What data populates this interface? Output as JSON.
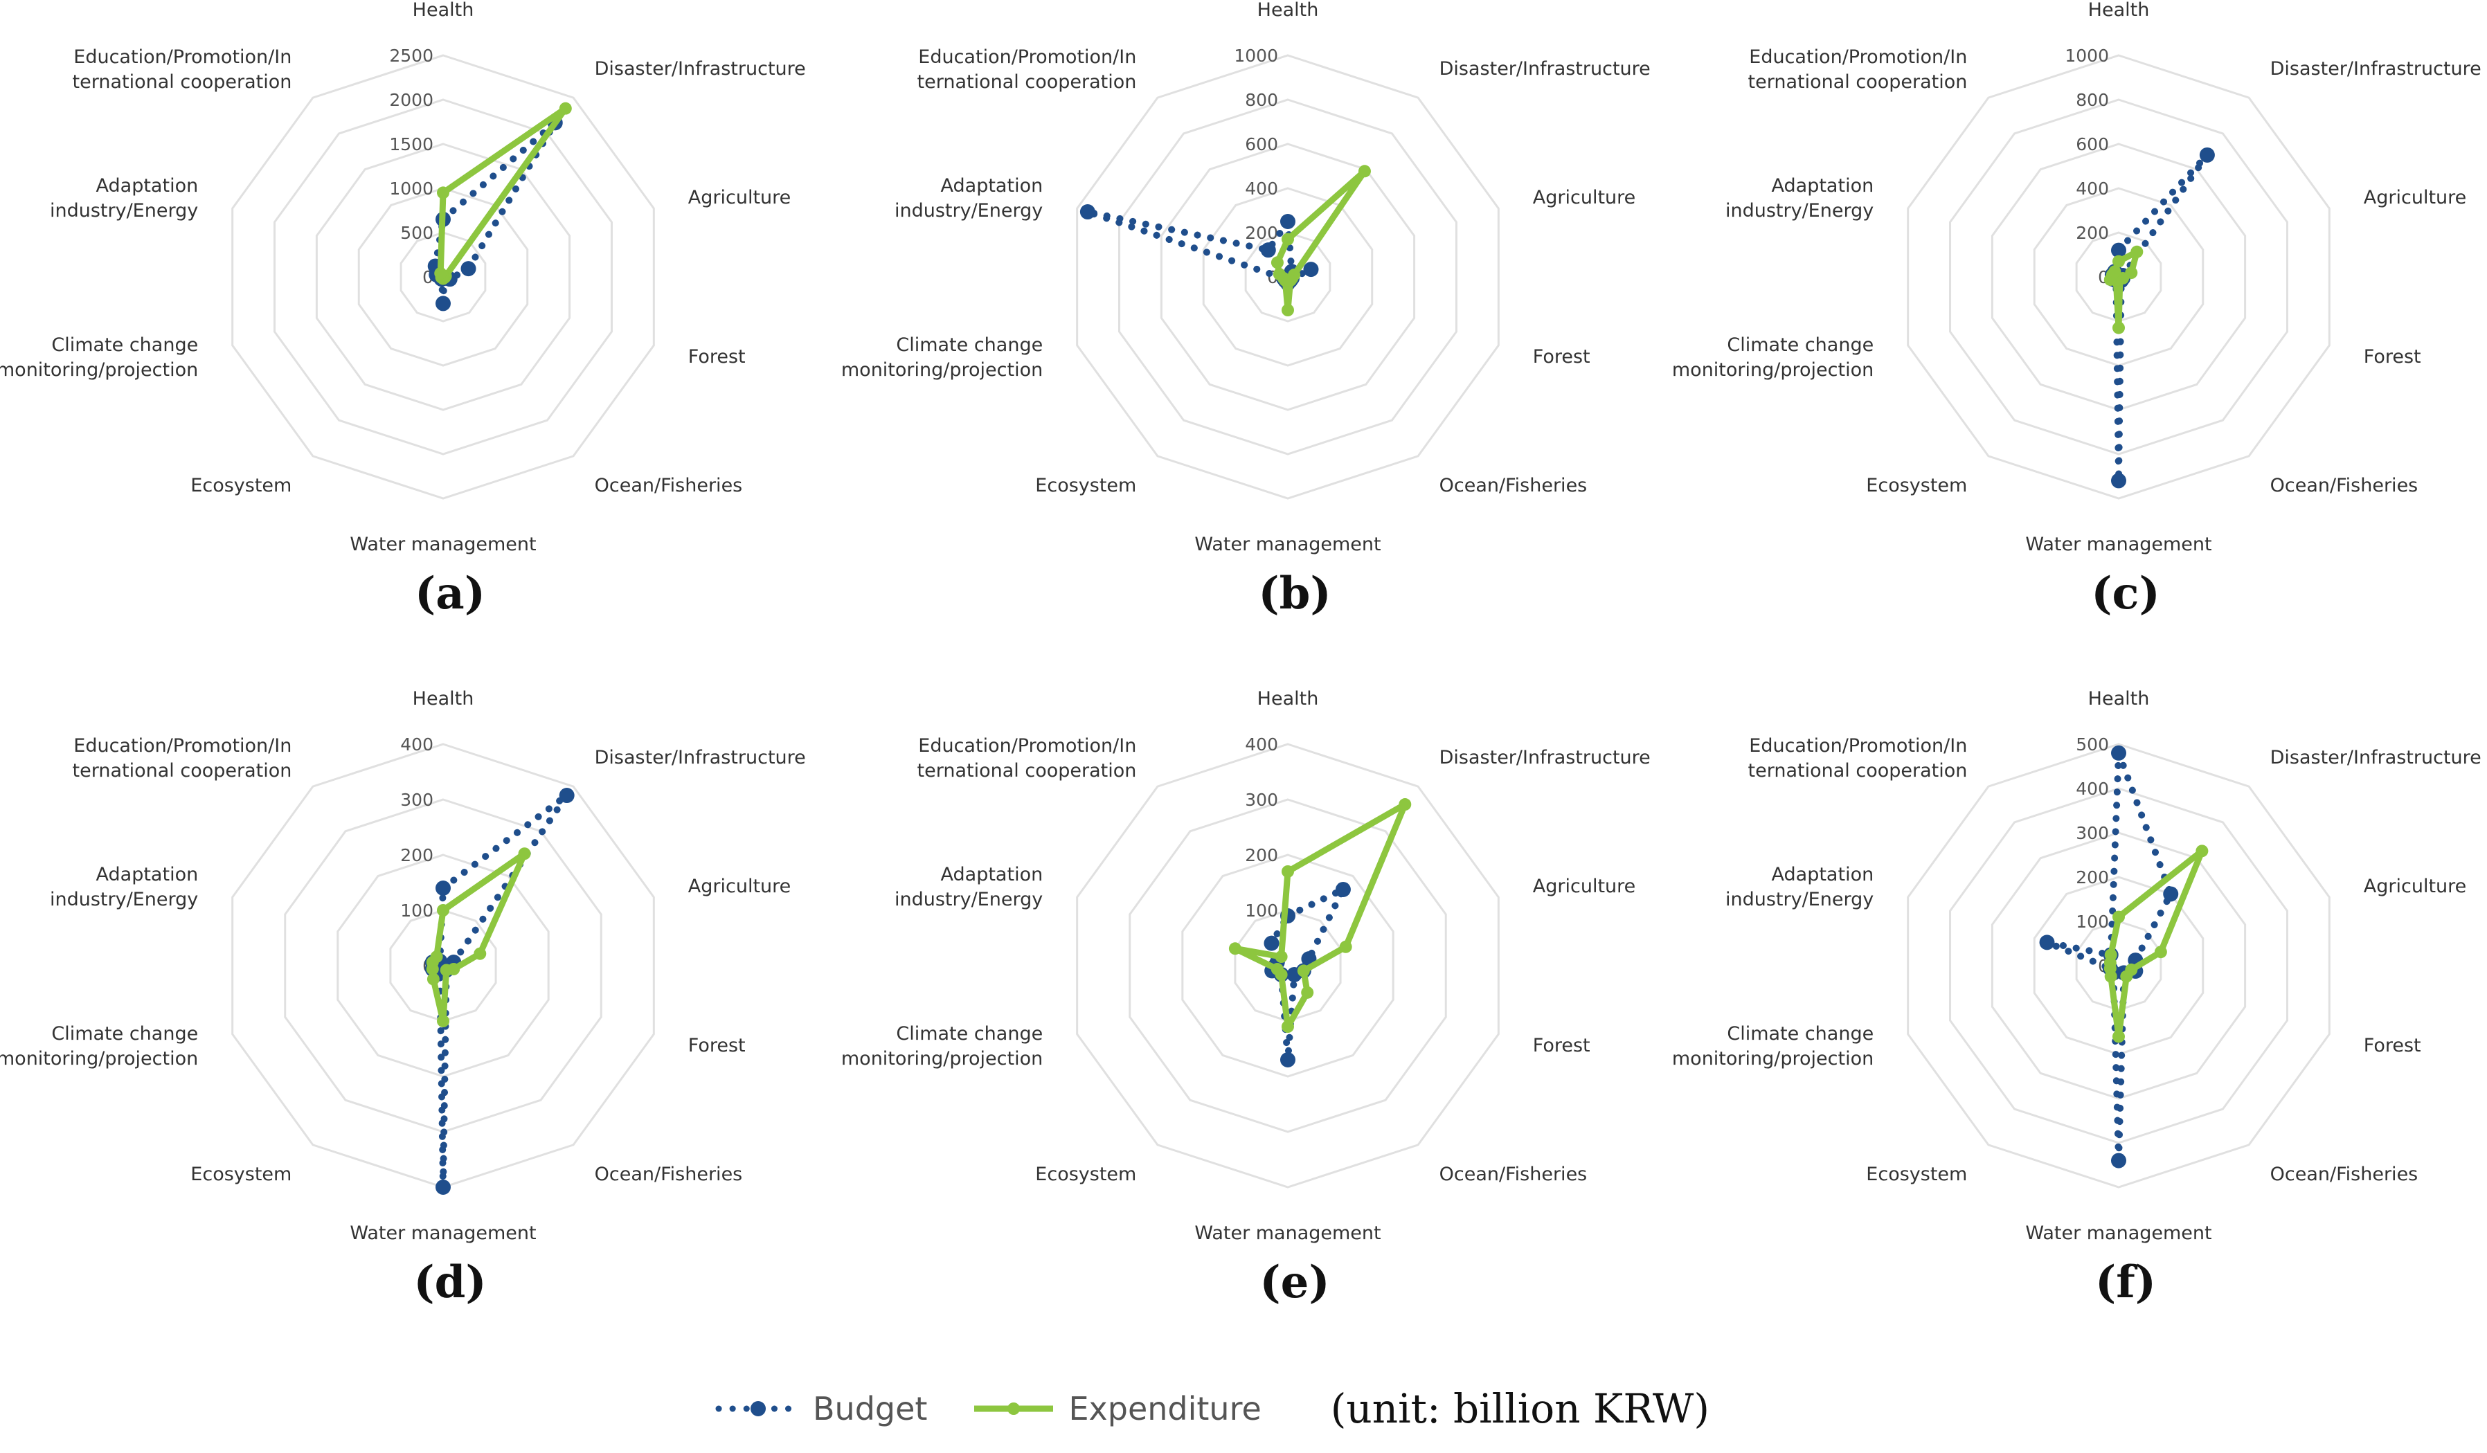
{
  "chart_data": {
    "type": "radar",
    "unit_note": "(unit: billion KRW)",
    "axes_labels": [
      [
        "Health"
      ],
      [
        "Disaster/Infrastructure"
      ],
      [
        "Agriculture"
      ],
      [
        "Forest"
      ],
      [
        "Ocean/Fisheries"
      ],
      [
        "Water management"
      ],
      [
        "Ecosystem"
      ],
      [
        "Climate change",
        "monitoring/projection"
      ],
      [
        "Adaptation",
        "industry/Energy"
      ],
      [
        "Education/Promotion/In",
        "ternational cooperation"
      ]
    ],
    "legend": [
      {
        "name": "Budget",
        "color": "#1f4e8c",
        "style": "dotted"
      },
      {
        "name": "Expenditure",
        "color": "#8dc63f",
        "style": "solid"
      }
    ],
    "panels": [
      {
        "label": "(a)",
        "ylim": [
          0,
          2500
        ],
        "ticks": [
          "0",
          "500",
          "1000",
          "1500",
          "2000",
          "2500"
        ],
        "series": [
          {
            "name": "Budget",
            "values": [
              650,
              2150,
              300,
              80,
              20,
              300,
              30,
              30,
              80,
              150
            ]
          },
          {
            "name": "Expenditure",
            "values": [
              950,
              2350,
              30,
              20,
              10,
              20,
              10,
              20,
              10,
              50
            ]
          }
        ]
      },
      {
        "label": "(b)",
        "ylim": [
          0,
          1000
        ],
        "ticks": [
          "0",
          "200",
          "400",
          "600",
          "800",
          "1000"
        ],
        "series": [
          {
            "name": "Budget",
            "values": [
              250,
              30,
              110,
              20,
              20,
              30,
              20,
              20,
              950,
              150
            ]
          },
          {
            "name": "Expenditure",
            "values": [
              170,
              590,
              30,
              20,
              20,
              150,
              20,
              20,
              40,
              80
            ]
          }
        ]
      },
      {
        "label": "(c)",
        "ylim": [
          0,
          1000
        ],
        "ticks": [
          "0",
          "200",
          "400",
          "600",
          "800",
          "1000"
        ],
        "series": [
          {
            "name": "Budget",
            "values": [
              120,
              680,
              20,
              20,
              20,
              920,
              20,
              30,
              30,
              30
            ]
          },
          {
            "name": "Expenditure",
            "values": [
              70,
              140,
              60,
              20,
              10,
              230,
              20,
              40,
              30,
              30
            ]
          }
        ]
      },
      {
        "label": "(d)",
        "ylim": [
          0,
          400
        ],
        "ticks": [
          "0",
          "100",
          "200",
          "300",
          "400"
        ],
        "series": [
          {
            "name": "Budget",
            "values": [
              140,
              380,
              20,
              10,
              10,
              400,
              10,
              20,
              20,
              10
            ]
          },
          {
            "name": "Expenditure",
            "values": [
              100,
              250,
              70,
              20,
              10,
              100,
              30,
              20,
              20,
              20
            ]
          }
        ]
      },
      {
        "label": "(e)",
        "ylim": [
          0,
          400
        ],
        "ticks": [
          "0",
          "100",
          "200",
          "300",
          "400"
        ],
        "series": [
          {
            "name": "Budget",
            "values": [
              90,
              170,
              40,
              30,
              20,
              170,
              20,
              30,
              20,
              50
            ]
          },
          {
            "name": "Expenditure",
            "values": [
              170,
              360,
              110,
              30,
              60,
              110,
              20,
              20,
              100,
              20
            ]
          }
        ]
      },
      {
        "label": "(f)",
        "ylim": [
          0,
          500
        ],
        "ticks": [
          "0",
          "100",
          "200",
          "300",
          "400",
          "500"
        ],
        "series": [
          {
            "name": "Budget",
            "values": [
              480,
              200,
              40,
              40,
              20,
              440,
              20,
              20,
              170,
              30
            ]
          },
          {
            "name": "Expenditure",
            "values": [
              110,
              320,
              100,
              30,
              30,
              160,
              30,
              20,
              20,
              30
            ]
          }
        ]
      }
    ]
  }
}
